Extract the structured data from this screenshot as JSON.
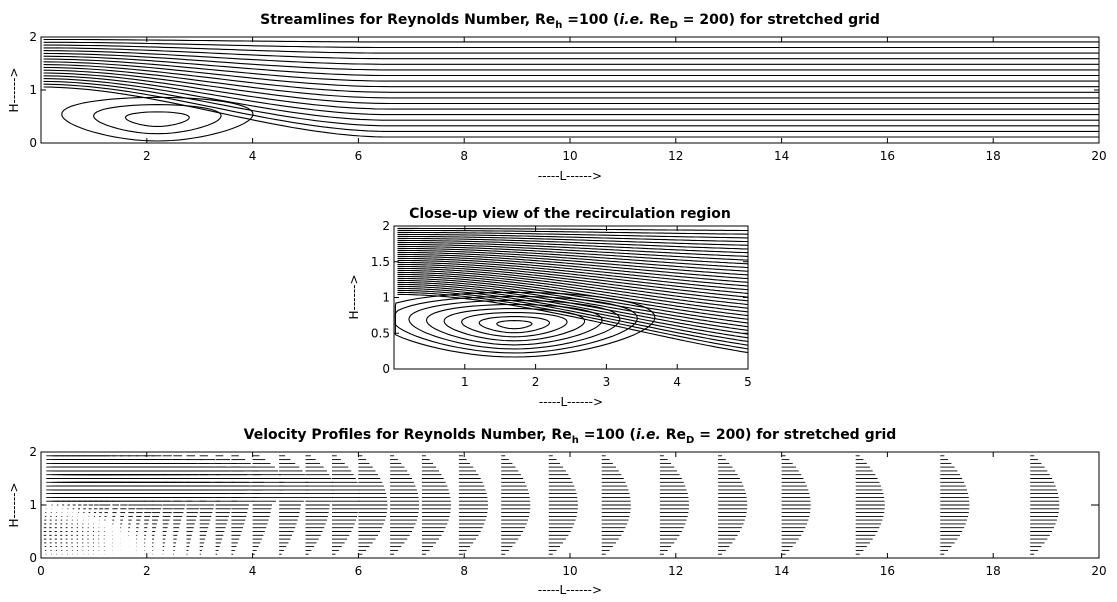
{
  "chart_data": [
    {
      "type": "streamline",
      "title": "Streamlines for Reynolds Number, Re_h =100 (i.e. Re_D = 200) for stretched grid",
      "title_parts": {
        "a": "Streamlines for Reynolds Number, Re",
        "sub1": "h",
        "b": " =100 (",
        "ie": "i.e.",
        "c": " Re",
        "sub2": "D",
        "d": " = 200) for stretched grid"
      },
      "xlabel": "-----L------>",
      "ylabel": "H------>",
      "xlim": [
        0,
        20
      ],
      "ylim": [
        0,
        2
      ],
      "xticks": [
        "2",
        "4",
        "6",
        "8",
        "10",
        "12",
        "14",
        "16",
        "18",
        "20"
      ],
      "yticks": [
        "0",
        "1",
        "2"
      ],
      "recirculation": {
        "center_x": 2.2,
        "center_y": 0.45,
        "reattachment_x": 4.1
      }
    },
    {
      "type": "streamline",
      "title": "Close-up view of the recirculation region",
      "xlabel": "-----L------>",
      "ylabel": "H------>",
      "xlim": [
        0,
        5
      ],
      "ylim": [
        0,
        2
      ],
      "xticks": [
        "1",
        "2",
        "3",
        "4",
        "5"
      ],
      "yticks": [
        "0",
        "0.5",
        "1",
        "1.5",
        "2"
      ],
      "recirculation": {
        "center_x": 1.7,
        "center_y": 0.62,
        "reattachment_x": 4.1
      }
    },
    {
      "type": "quiver",
      "title": "Velocity Profiles for Reynolds Number, Re_h =100 (i.e. Re_D = 200) for stretched grid",
      "title_parts": {
        "a": "Velocity Profiles for Reynolds Number, Re",
        "sub1": "h",
        "b": " =100 (",
        "ie": "i.e.",
        "c": " Re",
        "sub2": "D",
        "d": " = 200) for stretched grid"
      },
      "xlabel": "-----L------>",
      "ylabel": "H------>",
      "xlim": [
        0,
        20
      ],
      "ylim": [
        0,
        2
      ],
      "xticks": [
        "0",
        "2",
        "4",
        "6",
        "8",
        "10",
        "12",
        "14",
        "16",
        "18",
        "20"
      ],
      "yticks": [
        "0",
        "1",
        "2"
      ],
      "profile_stations_x": [
        0.1,
        0.2,
        0.3,
        0.4,
        0.5,
        0.6,
        0.7,
        0.8,
        0.9,
        1.0,
        1.1,
        1.2,
        1.35,
        1.5,
        1.65,
        1.8,
        1.95,
        2.1,
        2.3,
        2.5,
        2.75,
        3.0,
        3.3,
        3.6,
        4.0,
        4.5,
        5.0,
        5.5,
        6.0,
        6.6,
        7.2,
        7.9,
        8.7,
        9.6,
        10.6,
        11.7,
        12.8,
        14.0,
        15.4,
        17.0,
        18.7
      ]
    }
  ]
}
